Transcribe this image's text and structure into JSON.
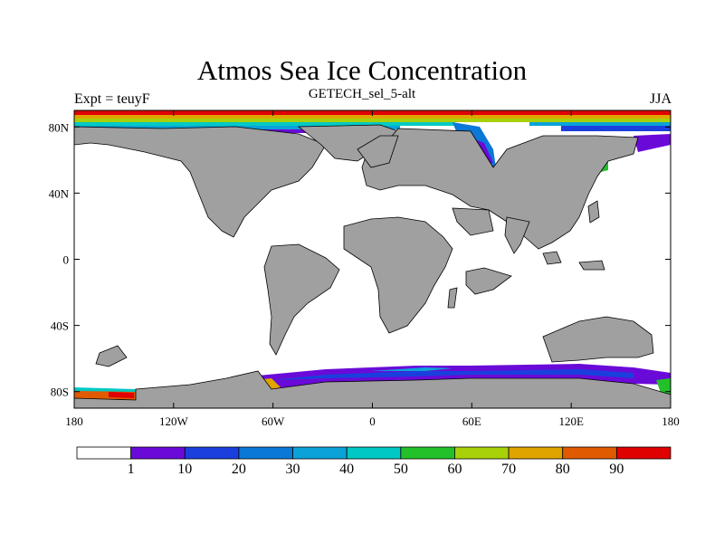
{
  "header": {
    "title": "Atmos Sea Ice Concentration",
    "subtitle": "GETECH_sel_5-alt",
    "left_label": "Expt = teuyF",
    "right_label": "JJA"
  },
  "map": {
    "lon_range": [
      -180,
      180
    ],
    "lat_range": [
      -90,
      90
    ],
    "ocean_color": "#ffffff",
    "land_color": "#a0a0a0",
    "x_ticks": [
      {
        "value": -180,
        "label": "180"
      },
      {
        "value": -120,
        "label": "120W"
      },
      {
        "value": -60,
        "label": "60W"
      },
      {
        "value": 0,
        "label": "0"
      },
      {
        "value": 60,
        "label": "60E"
      },
      {
        "value": 120,
        "label": "120E"
      },
      {
        "value": 180,
        "label": "180"
      }
    ],
    "y_ticks": [
      {
        "value": 80,
        "label": "80N"
      },
      {
        "value": 40,
        "label": "40N"
      },
      {
        "value": 0,
        "label": "0"
      },
      {
        "value": -40,
        "label": "40S"
      },
      {
        "value": -80,
        "label": "80S"
      }
    ]
  },
  "colorbar": {
    "labels": [
      "1",
      "10",
      "20",
      "30",
      "40",
      "50",
      "60",
      "70",
      "80",
      "90"
    ],
    "colors": [
      "#ffffff",
      "#6a0ad8",
      "#1a3fdc",
      "#0a78d6",
      "#0aa2d8",
      "#00c9c4",
      "#22c12a",
      "#a8d10a",
      "#e0a400",
      "#e05a00",
      "#e00000"
    ]
  }
}
